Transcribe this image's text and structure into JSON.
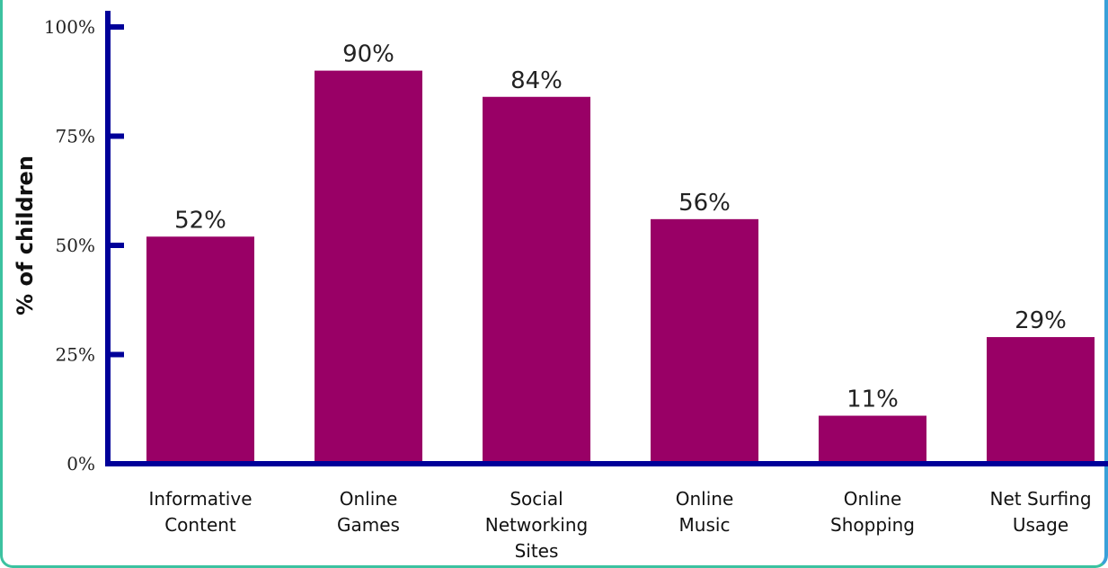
{
  "chart_data": {
    "type": "bar",
    "title": "",
    "xlabel": "",
    "ylabel": "% of children",
    "categories": [
      "Informative Content",
      "Online Games",
      "Social Networking Sites",
      "Online Music",
      "Online Shopping",
      "Net Surfing Usage"
    ],
    "category_lines": [
      [
        "Informative",
        "Content"
      ],
      [
        "Online",
        "Games"
      ],
      [
        "Social",
        "Networking",
        "Sites"
      ],
      [
        "Online",
        "Music"
      ],
      [
        "Online",
        "Shopping"
      ],
      [
        "Net Surfing",
        "Usage"
      ]
    ],
    "values": [
      52,
      90,
      84,
      56,
      11,
      29
    ],
    "data_labels": [
      "52%",
      "90%",
      "84%",
      "56%",
      "11%",
      "29%"
    ],
    "ylim": [
      0,
      100
    ],
    "yticks": [
      0,
      25,
      50,
      75,
      100
    ],
    "ytick_labels": [
      "0%",
      "25%",
      "50%",
      "75%",
      "100%"
    ],
    "grid": false,
    "legend": "none"
  },
  "colors": {
    "bar": "#990066",
    "axis": "#000099",
    "frame_left": "#3cc2a0",
    "frame_right": "#3aa0d8"
  }
}
